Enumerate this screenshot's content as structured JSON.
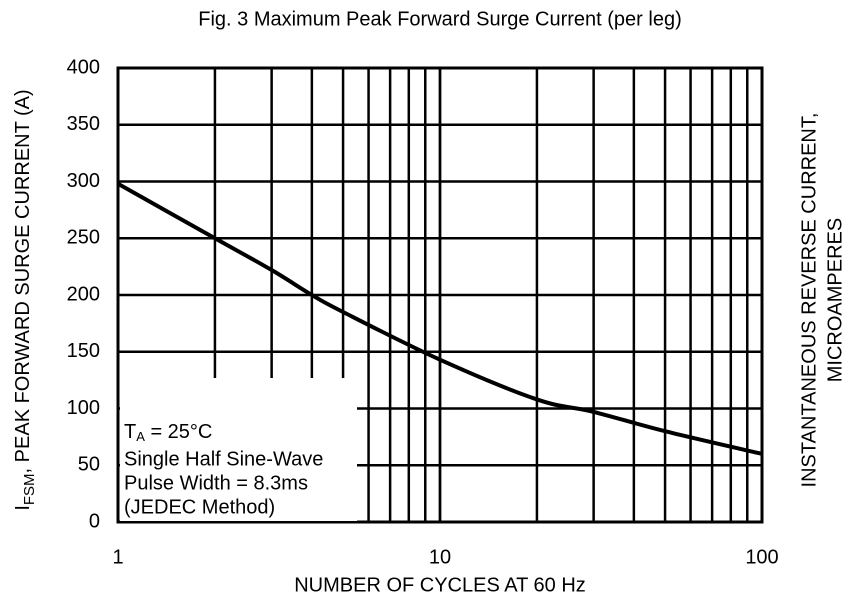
{
  "chart_data": {
    "type": "line",
    "title": "Fig. 3  Maximum Peak Forward Surge Current (per leg)",
    "x_label": "NUMBER OF CYCLES AT 60 Hz",
    "y_label": [
      "I",
      "FSM",
      ", PEAK FORWARD SURGE CURRENT (A)"
    ],
    "y2_label": [
      "INSTANTANEOUS  REVERSE  CURRENT,",
      "MICROAMPERES"
    ],
    "annotation": {
      "first": [
        "T",
        "A",
        " = 25°C"
      ],
      "lines": [
        "Single Half Sine-Wave",
        "Pulse Width = 8.3ms",
        "(JEDEC Method)"
      ]
    },
    "xlog": true,
    "xlim": [
      1,
      100
    ],
    "xticks": [
      1,
      10,
      100
    ],
    "xgrid": [
      2,
      3,
      4,
      5,
      6,
      7,
      8,
      9,
      10,
      20,
      30,
      40,
      50,
      60,
      70,
      80,
      90
    ],
    "ylim": [
      0,
      400
    ],
    "yticks": [
      0,
      50,
      100,
      150,
      200,
      250,
      300,
      350,
      400
    ],
    "grid": true,
    "series": [
      {
        "color": "#000000",
        "x": [
          1,
          2,
          3,
          4,
          5,
          10,
          20,
          30,
          50,
          100
        ],
        "values": [
          298,
          250,
          222,
          200,
          185,
          143,
          108,
          97,
          80,
          60
        ]
      }
    ]
  }
}
